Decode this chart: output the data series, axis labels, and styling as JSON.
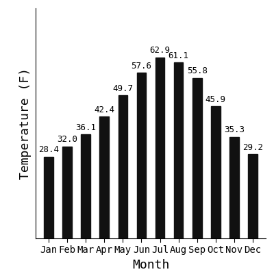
{
  "months": [
    "Jan",
    "Feb",
    "Mar",
    "Apr",
    "May",
    "Jun",
    "Jul",
    "Aug",
    "Sep",
    "Oct",
    "Nov",
    "Dec"
  ],
  "values": [
    28.4,
    32.0,
    36.1,
    42.4,
    49.7,
    57.6,
    62.9,
    61.1,
    55.8,
    45.9,
    35.3,
    29.2
  ],
  "bar_color": "#111111",
  "xlabel": "Month",
  "ylabel": "Temperature (F)",
  "ylim": [
    0,
    80
  ],
  "background_color": "#ffffff",
  "label_fontsize": 13,
  "tick_fontsize": 10,
  "value_fontsize": 9,
  "bar_width": 0.5
}
